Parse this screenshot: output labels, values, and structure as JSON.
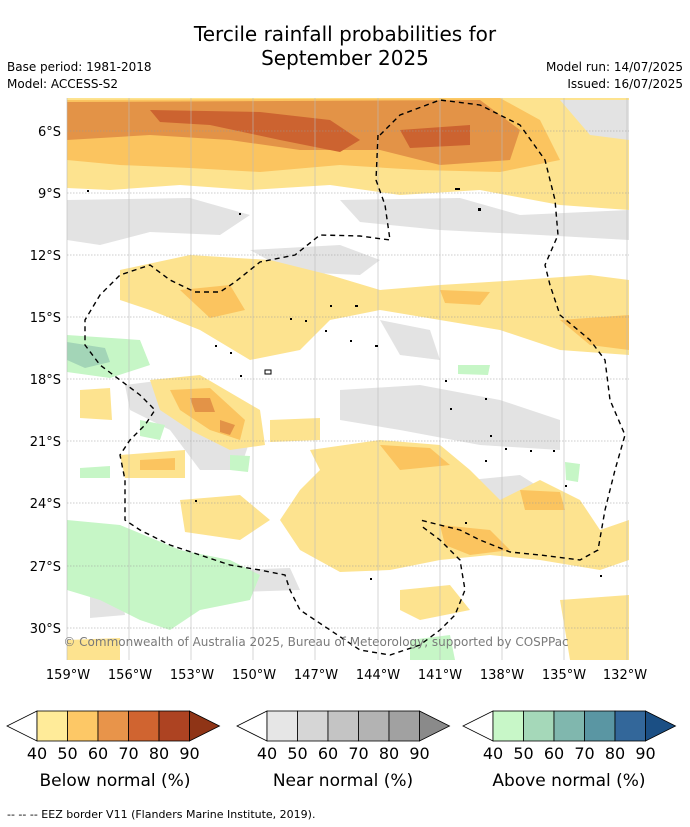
{
  "header": {
    "title_line1": "Tercile rainfall probabilities for",
    "title_line2": "September 2025",
    "base_period": "Base period: 1981-2018",
    "model": "Model: ACCESS-S2",
    "model_run": "Model run: 14/07/2025",
    "issued": "Issued: 16/07/2025"
  },
  "map": {
    "lat_labels": [
      "6°S",
      "9°S",
      "12°S",
      "15°S",
      "18°S",
      "21°S",
      "24°S",
      "27°S",
      "30°S"
    ],
    "lon_labels": [
      "159°W",
      "156°W",
      "153°W",
      "150°W",
      "147°W",
      "144°W",
      "141°W",
      "138°W",
      "135°W",
      "132°W"
    ],
    "copyright": "© Commonwealth of Australia 2025, Bureau of Meteorology, supported by COSPPac"
  },
  "colorbars": [
    {
      "label": "Below normal (%)",
      "ticks": [
        "40",
        "50",
        "60",
        "70",
        "80",
        "90"
      ],
      "colors": [
        "#ffeb99",
        "#fdc866",
        "#e8944a",
        "#d06430",
        "#ad4322"
      ],
      "low_end": "#ffffff",
      "high_end": "#8f3416"
    },
    {
      "label": "Near normal (%)",
      "ticks": [
        "40",
        "50",
        "60",
        "70",
        "80",
        "90"
      ],
      "colors": [
        "#e6e6e6",
        "#d6d6d6",
        "#c4c4c4",
        "#b3b3b3",
        "#a1a1a1"
      ],
      "low_end": "#ffffff",
      "high_end": "#8a8a8a"
    },
    {
      "label": "Above normal (%)",
      "ticks": [
        "40",
        "50",
        "60",
        "70",
        "80",
        "90"
      ],
      "colors": [
        "#c8f7c8",
        "#a5d8b9",
        "#80b7ae",
        "#5a96a3",
        "#33679a"
      ],
      "low_end": "#ffffff",
      "high_end": "#1b4f84"
    }
  ],
  "footnote": "--  --  -- EEZ border V11 (Flanders Marine Institute, 2019)."
}
